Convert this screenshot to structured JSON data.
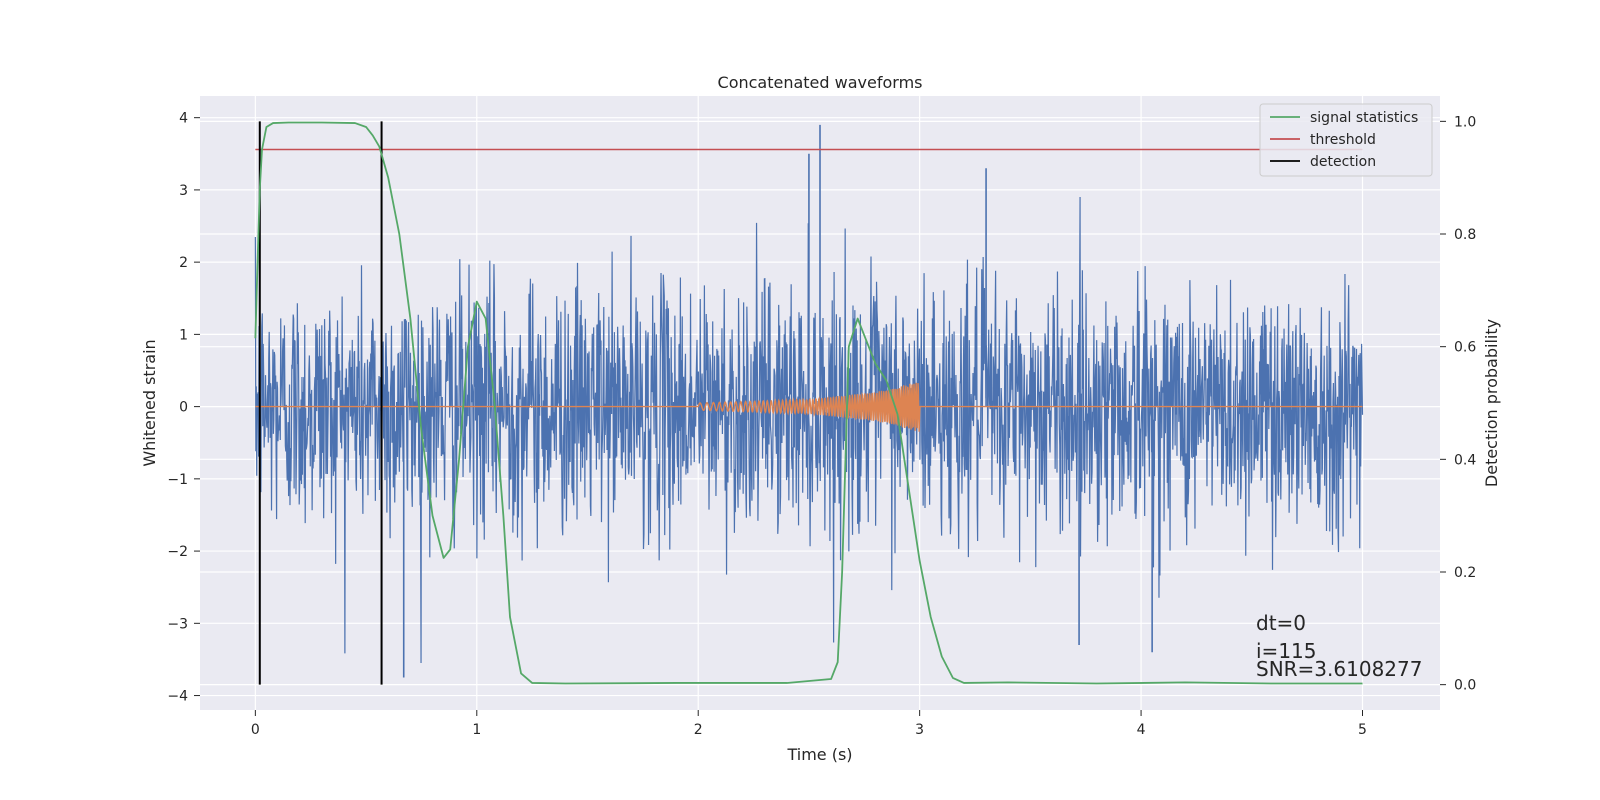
{
  "chart_data": {
    "type": "line",
    "title": "Concatenated waveforms",
    "xlabel": "Time (s)",
    "ylabel": "Whitened strain",
    "y2label": "Detection probability",
    "xlim": [
      -0.25,
      5.35
    ],
    "ylim": [
      -4.2,
      4.3
    ],
    "y2lim": [
      -0.045,
      1.045
    ],
    "xticks": [
      0,
      1,
      2,
      3,
      4,
      5
    ],
    "yticks": [
      -4,
      -3,
      -2,
      -1,
      0,
      1,
      2,
      3,
      4
    ],
    "y2ticks": [
      0.0,
      0.2,
      0.4,
      0.6,
      0.8,
      1.0
    ],
    "xtick_labels": [
      "0",
      "1",
      "2",
      "3",
      "4",
      "5"
    ],
    "ytick_labels": [
      "−4",
      "−3",
      "−2",
      "−1",
      "0",
      "1",
      "2",
      "3",
      "4"
    ],
    "y2tick_labels": [
      "0.0",
      "0.2",
      "0.4",
      "0.6",
      "0.8",
      "1.0"
    ],
    "grid": true,
    "legend_position": "top-right",
    "legend": [
      {
        "label": "signal statistics",
        "color": "#55a868"
      },
      {
        "label": "threshold",
        "color": "#c44e52"
      },
      {
        "label": "detection",
        "color": "#000000"
      }
    ],
    "series": [
      {
        "kind": "noise",
        "color": "#4c72b0",
        "x_range": [
          0,
          5
        ],
        "typical_peak": 2.2,
        "max": 3.9,
        "min": -3.75,
        "peaks": [
          [
            2.55,
            3.9
          ],
          [
            2.5,
            3.5
          ],
          [
            3.3,
            3.3
          ],
          [
            0.67,
            -3.75
          ],
          [
            3.72,
            -3.3
          ],
          [
            4.05,
            -3.4
          ]
        ]
      },
      {
        "kind": "chirp",
        "color": "#dd8452",
        "x": [
          0,
          2,
          2.5,
          2.8,
          3,
          5
        ],
        "amplitude": [
          0,
          0.05,
          0.1,
          0.2,
          0.35,
          0
        ]
      },
      {
        "name": "signal statistics",
        "color": "#55a868",
        "axis": "right",
        "x": [
          0,
          0.01,
          0.02,
          0.03,
          0.05,
          0.08,
          0.15,
          0.3,
          0.45,
          0.5,
          0.53,
          0.56,
          0.6,
          0.65,
          0.7,
          0.75,
          0.8,
          0.85,
          0.88,
          0.92,
          0.96,
          1.0,
          1.04,
          1.08,
          1.12,
          1.15,
          1.2,
          1.25,
          1.4,
          1.9,
          2.4,
          2.6,
          2.63,
          2.65,
          2.68,
          2.72,
          2.75,
          2.8,
          2.85,
          2.9,
          2.95,
          3.0,
          3.05,
          3.1,
          3.15,
          3.2,
          3.4,
          3.8,
          4.2,
          4.6,
          5.0
        ],
        "y": [
          0.615,
          0.75,
          0.88,
          0.95,
          0.99,
          0.997,
          0.998,
          0.998,
          0.997,
          0.99,
          0.975,
          0.955,
          0.9,
          0.8,
          0.65,
          0.45,
          0.3,
          0.225,
          0.24,
          0.4,
          0.6,
          0.68,
          0.65,
          0.5,
          0.3,
          0.12,
          0.02,
          0.003,
          0.002,
          0.003,
          0.003,
          0.01,
          0.04,
          0.2,
          0.6,
          0.65,
          0.62,
          0.57,
          0.54,
          0.48,
          0.35,
          0.22,
          0.12,
          0.05,
          0.012,
          0.003,
          0.004,
          0.002,
          0.004,
          0.002,
          0.002
        ]
      }
    ],
    "threshold": {
      "value": 0.95,
      "x_range": [
        0,
        5
      ],
      "color": "#c44e52"
    },
    "detections": [
      0.02,
      0.57
    ],
    "detection_range": [
      0,
      1
    ],
    "annotations": [
      "dt=0",
      "i=115",
      "SNR=3.6108277"
    ]
  }
}
